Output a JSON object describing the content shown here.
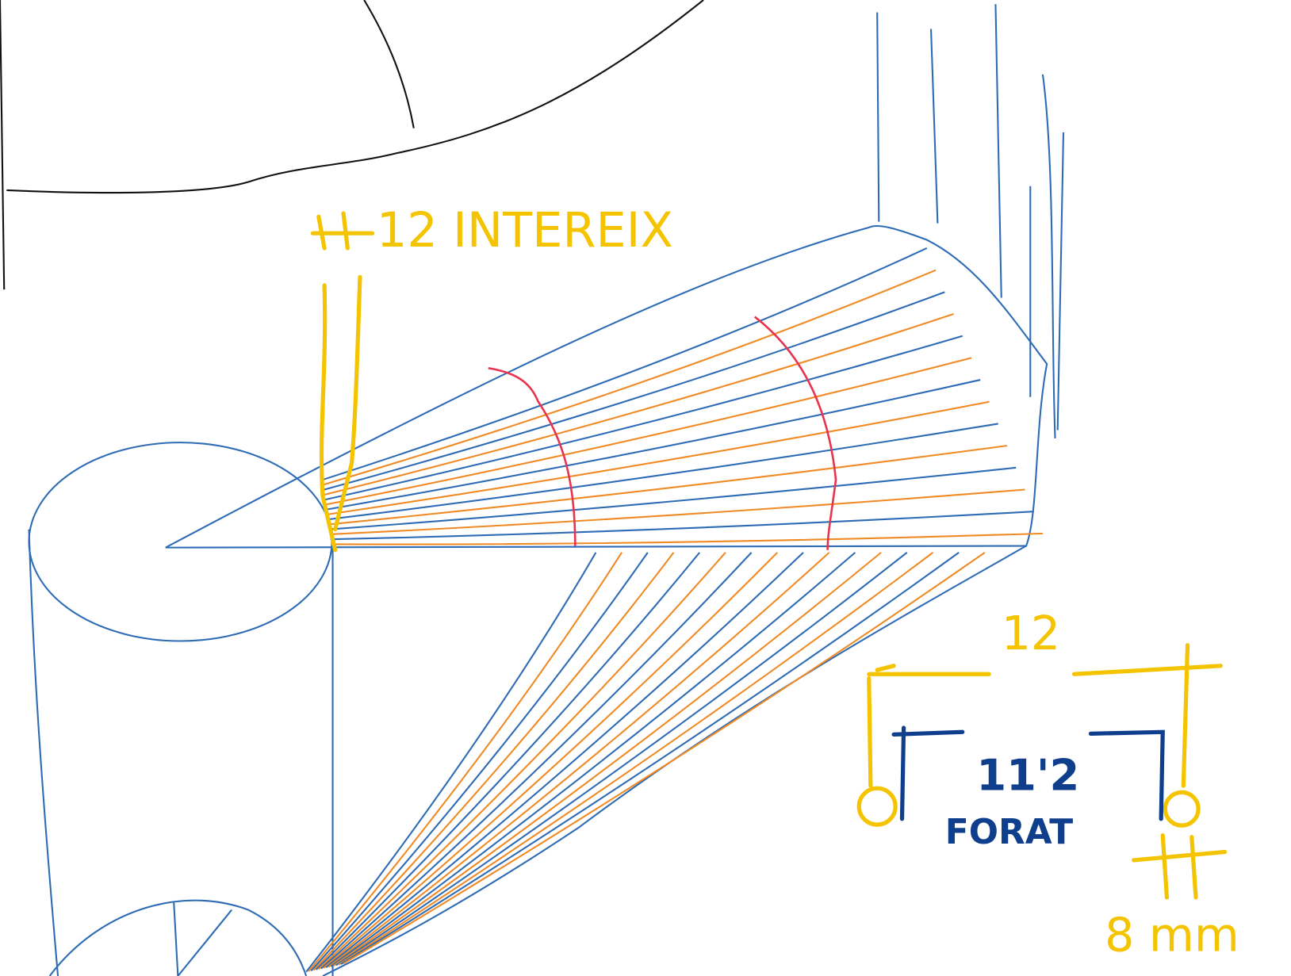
{
  "labels": {
    "top": "12 INTEREIX",
    "width": "12",
    "hole": "11'2",
    "hole_name": "FORAT",
    "thickness": "8 mm"
  }
}
